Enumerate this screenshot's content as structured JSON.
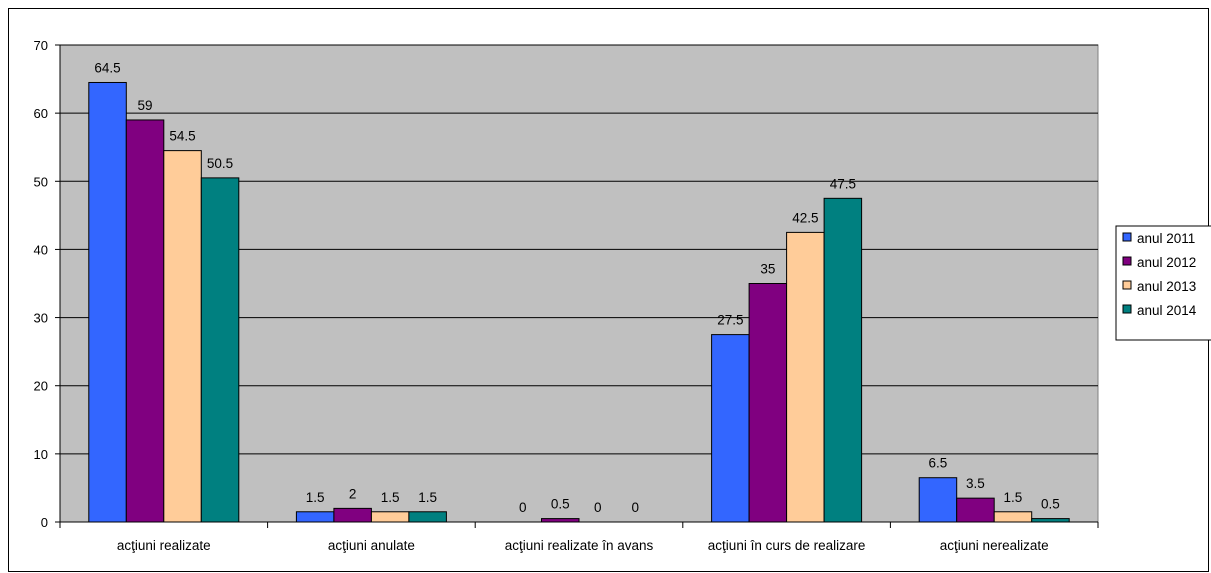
{
  "chart_data": {
    "type": "bar",
    "categories": [
      "acţiuni realizate",
      "acţiuni anulate",
      "acţiuni realizate în avans",
      "acţiuni în curs de realizare",
      "acţiuni nerealizate"
    ],
    "series": [
      {
        "name": "anul 2011",
        "color": "#3366FF",
        "values": [
          64.5,
          1.5,
          0,
          27.5,
          6.5
        ]
      },
      {
        "name": "anul 2012",
        "color": "#800080",
        "values": [
          59,
          2,
          0.5,
          35,
          3.5
        ]
      },
      {
        "name": "anul 2013",
        "color": "#FFCC99",
        "values": [
          54.5,
          1.5,
          0,
          42.5,
          1.5
        ]
      },
      {
        "name": "anul 2014",
        "color": "#008080",
        "values": [
          50.5,
          1.5,
          0,
          47.5,
          0.5
        ]
      }
    ],
    "ylim": [
      0,
      70
    ],
    "yticks": [
      0,
      10,
      20,
      30,
      40,
      50,
      60,
      70
    ],
    "grid": true,
    "plot_background": "#C0C0C0",
    "legend_position": "right",
    "title": "",
    "xlabel": "",
    "ylabel": ""
  }
}
